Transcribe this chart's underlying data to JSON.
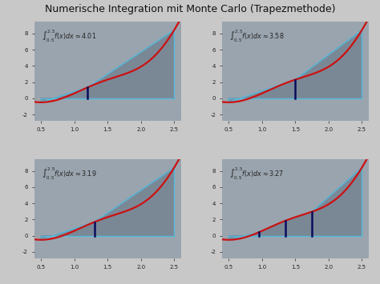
{
  "title": "Numerische Integration mit Monte Carlo (Trapezmethode)",
  "title_fontsize": 9,
  "bg_color": "#c8c8c8",
  "plot_bg_color": "#9aa4ae",
  "x_start": 0.5,
  "x_end": 2.5,
  "subplots": [
    {
      "sample_points": [
        0.5,
        1.2,
        2.5
      ],
      "integral_label": "$\\int_{0.5}^{2.5} f(x)dx \\approx 4.01$"
    },
    {
      "sample_points": [
        0.5,
        1.5,
        2.5
      ],
      "integral_label": "$\\int_{0.5}^{2.5} f(x)dx \\approx 3.58$"
    },
    {
      "sample_points": [
        0.5,
        1.3,
        2.5
      ],
      "integral_label": "$\\int_{0.5}^{2.5} f(x)dx \\approx 3.19$"
    },
    {
      "sample_points": [
        0.5,
        0.95,
        1.35,
        1.75,
        2.5
      ],
      "integral_label": "$\\int_{0.5}^{2.5} f(x)dx \\approx 3.27$"
    }
  ],
  "curve_color": "#cc1111",
  "trap_fill_color": "#7a8896",
  "vline_dark_color": "#0a0a5a",
  "vline_light_color": "#55bbdd",
  "ytick_vals": [
    -2,
    0,
    2,
    4,
    6,
    8
  ],
  "xtick_vals": [
    0.5,
    1.0,
    1.5,
    2.0,
    2.5
  ],
  "xtick_labels": [
    "0.5",
    "1.0",
    "1.5",
    "2.0",
    "2.5"
  ],
  "ylim": [
    -2.8,
    9.5
  ],
  "xlim": [
    0.4,
    2.6
  ]
}
